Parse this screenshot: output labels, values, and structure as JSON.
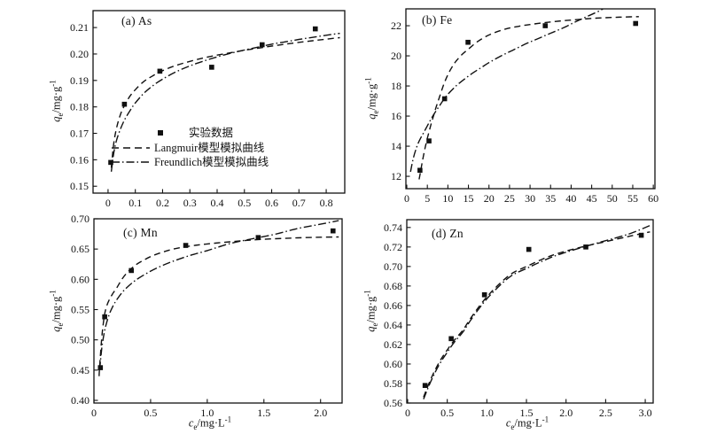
{
  "figure": {
    "background": "#ffffff",
    "ink_color": "#111111",
    "ylabel": {
      "sym": "q",
      "sub": "e",
      "rest": "/mg·g",
      "sup": "-1"
    },
    "xlabel": {
      "sym": "c",
      "sub": "e",
      "rest": "/mg·L",
      "sup": "-1"
    }
  },
  "legend": {
    "experimental": "实验数据",
    "langmuir": "Langmuir模型模拟曲线",
    "freundlich": "Freundlich模型模拟曲线"
  },
  "chart_data": [
    {
      "type": "scatter",
      "panel_label": "(a) As",
      "element": "As",
      "xlim": [
        -0.055,
        0.868
      ],
      "ylim": [
        0.1474,
        0.2164
      ],
      "xticks": {
        "values": [
          0,
          0.1,
          0.2,
          0.3,
          0.4,
          0.5,
          0.6,
          0.7,
          0.8
        ],
        "labels": [
          "0",
          "0.1",
          "0.2",
          "0.3",
          "0.4",
          "0.5",
          "0.6",
          "0.7",
          "0.8"
        ]
      },
      "yticks": {
        "values": [
          0.15,
          0.16,
          0.17,
          0.18,
          0.19,
          0.2,
          0.21
        ],
        "labels": [
          "0.15",
          "0.16",
          "0.17",
          "0.18",
          "0.19",
          "0.20",
          "0.21"
        ]
      },
      "series": [
        {
          "name": "实验数据",
          "type": "points",
          "marker": "filled-square",
          "data": [
            [
              0.01,
              0.159
            ],
            [
              0.06,
              0.181
            ],
            [
              0.19,
              0.1935
            ],
            [
              0.38,
              0.195
            ],
            [
              0.565,
              0.2035
            ],
            [
              0.76,
              0.2095
            ]
          ]
        },
        {
          "name": "Langmuir模型模拟曲线",
          "type": "curve",
          "style": "dashed",
          "data": [
            [
              0.012,
              0.157
            ],
            [
              0.02,
              0.1655
            ],
            [
              0.03,
              0.1715
            ],
            [
              0.045,
              0.177
            ],
            [
              0.06,
              0.1805
            ],
            [
              0.08,
              0.184
            ],
            [
              0.1,
              0.1865
            ],
            [
              0.13,
              0.1895
            ],
            [
              0.16,
              0.1915
            ],
            [
              0.2,
              0.1937
            ],
            [
              0.25,
              0.1957
            ],
            [
              0.3,
              0.1972
            ],
            [
              0.35,
              0.1985
            ],
            [
              0.4,
              0.1996
            ],
            [
              0.45,
              0.2005
            ],
            [
              0.5,
              0.2014
            ],
            [
              0.55,
              0.2022
            ],
            [
              0.6,
              0.203
            ],
            [
              0.65,
              0.2037
            ],
            [
              0.7,
              0.2044
            ],
            [
              0.75,
              0.205
            ],
            [
              0.8,
              0.2056
            ],
            [
              0.85,
              0.2062
            ]
          ]
        },
        {
          "name": "Freundlich模型模拟曲线",
          "type": "curve",
          "style": "dashdot",
          "data": [
            [
              0.012,
              0.1555
            ],
            [
              0.02,
              0.162
            ],
            [
              0.03,
              0.167
            ],
            [
              0.045,
              0.1715
            ],
            [
              0.06,
              0.175
            ],
            [
              0.08,
              0.1785
            ],
            [
              0.1,
              0.1815
            ],
            [
              0.13,
              0.185
            ],
            [
              0.16,
              0.1877
            ],
            [
              0.2,
              0.1905
            ],
            [
              0.25,
              0.1933
            ],
            [
              0.3,
              0.1955
            ],
            [
              0.35,
              0.1973
            ],
            [
              0.4,
              0.1989
            ],
            [
              0.45,
              0.2003
            ],
            [
              0.5,
              0.2015
            ],
            [
              0.55,
              0.2026
            ],
            [
              0.6,
              0.2037
            ],
            [
              0.65,
              0.2046
            ],
            [
              0.7,
              0.2055
            ],
            [
              0.75,
              0.2063
            ],
            [
              0.8,
              0.2071
            ],
            [
              0.85,
              0.2078
            ]
          ]
        }
      ]
    },
    {
      "type": "scatter",
      "panel_label": "(b) Fe",
      "element": "Fe",
      "xlim": [
        -0.22,
        60.4
      ],
      "ylim": [
        11.18,
        23.12
      ],
      "xticks": {
        "values": [
          0,
          5,
          10,
          15,
          20,
          25,
          30,
          35,
          40,
          45,
          50,
          55,
          60
        ],
        "labels": [
          "0",
          "5",
          "10",
          "15",
          "20",
          "25",
          "30",
          "35",
          "40",
          "45",
          "50",
          "55",
          "60"
        ]
      },
      "yticks": {
        "values": [
          12,
          14,
          16,
          18,
          20,
          22
        ],
        "labels": [
          "12",
          "14",
          "16",
          "18",
          "20",
          "22"
        ]
      },
      "series": [
        {
          "name": "实验数据",
          "type": "points",
          "marker": "filled-square",
          "data": [
            [
              3.2,
              12.4
            ],
            [
              5.4,
              14.35
            ],
            [
              9.2,
              17.15
            ],
            [
              14.9,
              20.9
            ],
            [
              33.7,
              22.0
            ],
            [
              55.7,
              22.15
            ]
          ]
        },
        {
          "name": "Langmuir模型模拟曲线",
          "type": "curve",
          "style": "dashed",
          "data": [
            [
              3.0,
              11.8
            ],
            [
              3.4,
              12.4
            ],
            [
              3.8,
              13.0
            ],
            [
              4.3,
              13.7
            ],
            [
              4.8,
              14.3
            ],
            [
              5.4,
              14.95
            ],
            [
              6,
              15.55
            ],
            [
              6.6,
              16.1
            ],
            [
              7.2,
              16.65
            ],
            [
              8,
              17.3
            ],
            [
              9,
              18.1
            ],
            [
              10,
              18.75
            ],
            [
              11,
              19.25
            ],
            [
              12,
              19.65
            ],
            [
              13.5,
              20.1
            ],
            [
              15,
              20.45
            ],
            [
              17,
              20.9
            ],
            [
              19,
              21.25
            ],
            [
              21,
              21.5
            ],
            [
              24,
              21.78
            ],
            [
              27,
              21.95
            ],
            [
              30,
              22.08
            ],
            [
              34,
              22.22
            ],
            [
              38,
              22.33
            ],
            [
              42,
              22.42
            ],
            [
              46,
              22.5
            ],
            [
              50,
              22.55
            ],
            [
              53,
              22.58
            ],
            [
              56.5,
              22.6
            ]
          ]
        },
        {
          "name": "Freundlich模型模拟曲线",
          "type": "curve",
          "style": "dashdot",
          "data": [
            [
              0.9,
              12.3
            ],
            [
              1.5,
              13.1
            ],
            [
              2.1,
              13.7
            ],
            [
              2.7,
              14.15
            ],
            [
              3.3,
              14.5
            ],
            [
              4,
              14.85
            ],
            [
              5,
              15.35
            ],
            [
              6,
              15.85
            ],
            [
              7,
              16.3
            ],
            [
              8,
              16.7
            ],
            [
              9,
              17.1
            ],
            [
              10,
              17.45
            ],
            [
              12,
              18.0
            ],
            [
              14,
              18.45
            ],
            [
              16,
              18.85
            ],
            [
              18,
              19.2
            ],
            [
              20,
              19.55
            ],
            [
              23,
              20.0
            ],
            [
              26,
              20.4
            ],
            [
              29,
              20.8
            ],
            [
              32,
              21.15
            ],
            [
              35,
              21.5
            ],
            [
              38,
              21.85
            ],
            [
              41,
              22.25
            ],
            [
              43,
              22.5
            ],
            [
              45,
              22.75
            ],
            [
              47,
              23.0
            ],
            [
              48.2,
              23.2
            ]
          ]
        }
      ]
    },
    {
      "type": "scatter",
      "panel_label": "(c) Mn",
      "element": "Mn",
      "xlim": [
        0,
        2.19
      ],
      "ylim": [
        0.3956,
        0.7
      ],
      "xticks": {
        "values": [
          0,
          0.5,
          1.0,
          1.5,
          2.0
        ],
        "labels": [
          "0",
          "0.5",
          "1.0",
          "1.5",
          "2.0"
        ]
      },
      "yticks": {
        "values": [
          0.4,
          0.45,
          0.5,
          0.55,
          0.6,
          0.65,
          0.7
        ],
        "labels": [
          "0.40",
          "0.45",
          "0.50",
          "0.55",
          "0.60",
          "0.65",
          "0.70"
        ]
      },
      "series": [
        {
          "name": "实验数据",
          "type": "points",
          "marker": "filled-square",
          "data": [
            [
              0.057,
              0.454
            ],
            [
              0.095,
              0.538
            ],
            [
              0.33,
              0.6145
            ],
            [
              0.81,
              0.656
            ],
            [
              1.45,
              0.669
            ],
            [
              2.11,
              0.68
            ]
          ]
        },
        {
          "name": "Langmuir模型模拟曲线",
          "type": "curve",
          "style": "dashed",
          "data": [
            [
              0.045,
              0.44
            ],
            [
              0.05,
              0.455
            ],
            [
              0.07,
              0.505
            ],
            [
              0.09,
              0.5375
            ],
            [
              0.11,
              0.5545
            ],
            [
              0.14,
              0.568
            ],
            [
              0.17,
              0.5775
            ],
            [
              0.2,
              0.5855
            ],
            [
              0.25,
              0.601
            ],
            [
              0.3,
              0.6125
            ],
            [
              0.35,
              0.621
            ],
            [
              0.4,
              0.6275
            ],
            [
              0.5,
              0.6375
            ],
            [
              0.6,
              0.6445
            ],
            [
              0.7,
              0.65
            ],
            [
              0.85,
              0.655
            ],
            [
              1.0,
              0.6585
            ],
            [
              1.2,
              0.662
            ],
            [
              1.4,
              0.665
            ],
            [
              1.6,
              0.667
            ],
            [
              1.8,
              0.6685
            ],
            [
              2.0,
              0.6695
            ],
            [
              2.16,
              0.67
            ]
          ]
        },
        {
          "name": "Freundlich模型模拟曲线",
          "type": "curve",
          "style": "dashdot",
          "data": [
            [
              0.05,
              0.45
            ],
            [
              0.07,
              0.487
            ],
            [
              0.09,
              0.511
            ],
            [
              0.11,
              0.527
            ],
            [
              0.14,
              0.5445
            ],
            [
              0.17,
              0.5565
            ],
            [
              0.2,
              0.566
            ],
            [
              0.25,
              0.5785
            ],
            [
              0.3,
              0.588
            ],
            [
              0.35,
              0.596
            ],
            [
              0.4,
              0.6025
            ],
            [
              0.5,
              0.6135
            ],
            [
              0.6,
              0.6225
            ],
            [
              0.7,
              0.63
            ],
            [
              0.85,
              0.6395
            ],
            [
              1.0,
              0.6475
            ],
            [
              1.2,
              0.659
            ],
            [
              1.4,
              0.667
            ],
            [
              1.6,
              0.6745
            ],
            [
              1.8,
              0.684
            ],
            [
              2.0,
              0.691
            ],
            [
              2.16,
              0.697
            ]
          ]
        }
      ]
    },
    {
      "type": "scatter",
      "panel_label": "(d) Zn",
      "element": "Zn",
      "xlim": [
        -0.011,
        3.1
      ],
      "ylim": [
        0.56,
        0.748
      ],
      "xticks": {
        "values": [
          0,
          0.5,
          1.0,
          1.5,
          2.0,
          2.5,
          3.0
        ],
        "labels": [
          "0",
          "0.5",
          "1.0",
          "1.5",
          "2.0",
          "2.5",
          "3.0"
        ]
      },
      "yticks": {
        "values": [
          0.56,
          0.58,
          0.6,
          0.62,
          0.64,
          0.66,
          0.68,
          0.7,
          0.72,
          0.74
        ],
        "labels": [
          "0.56",
          "0.58",
          "0.60",
          "0.62",
          "0.64",
          "0.66",
          "0.68",
          "0.70",
          "0.72",
          "0.74"
        ]
      },
      "series": [
        {
          "name": "实验数据",
          "type": "points",
          "marker": "filled-square",
          "data": [
            [
              0.22,
              0.578
            ],
            [
              0.55,
              0.626
            ],
            [
              0.97,
              0.671
            ],
            [
              1.53,
              0.7175
            ],
            [
              2.25,
              0.72
            ],
            [
              2.95,
              0.732
            ]
          ]
        },
        {
          "name": "Langmuir模型模拟曲线",
          "type": "curve",
          "style": "dashed",
          "data": [
            [
              0.2,
              0.566
            ],
            [
              0.3,
              0.586
            ],
            [
              0.4,
              0.602
            ],
            [
              0.5,
              0.6145
            ],
            [
              0.6,
              0.6255
            ],
            [
              0.7,
              0.635
            ],
            [
              0.8,
              0.6475
            ],
            [
              0.95,
              0.664
            ],
            [
              1.1,
              0.6775
            ],
            [
              1.3,
              0.692
            ],
            [
              1.5,
              0.7
            ],
            [
              1.7,
              0.7075
            ],
            [
              1.9,
              0.7135
            ],
            [
              2.2,
              0.72
            ],
            [
              2.5,
              0.7255
            ],
            [
              2.8,
              0.731
            ],
            [
              3.06,
              0.7355
            ]
          ]
        },
        {
          "name": "Freundlich模型模拟曲线",
          "type": "curve",
          "style": "dashdot",
          "data": [
            [
              0.2,
              0.564
            ],
            [
              0.3,
              0.5835
            ],
            [
              0.4,
              0.5995
            ],
            [
              0.5,
              0.612
            ],
            [
              0.6,
              0.6235
            ],
            [
              0.7,
              0.633
            ],
            [
              0.8,
              0.6455
            ],
            [
              0.95,
              0.662
            ],
            [
              1.1,
              0.6755
            ],
            [
              1.3,
              0.69
            ],
            [
              1.5,
              0.698
            ],
            [
              1.7,
              0.7055
            ],
            [
              1.9,
              0.712
            ],
            [
              2.2,
              0.7195
            ],
            [
              2.5,
              0.7265
            ],
            [
              2.8,
              0.7335
            ],
            [
              3.06,
              0.742
            ]
          ]
        }
      ]
    }
  ]
}
